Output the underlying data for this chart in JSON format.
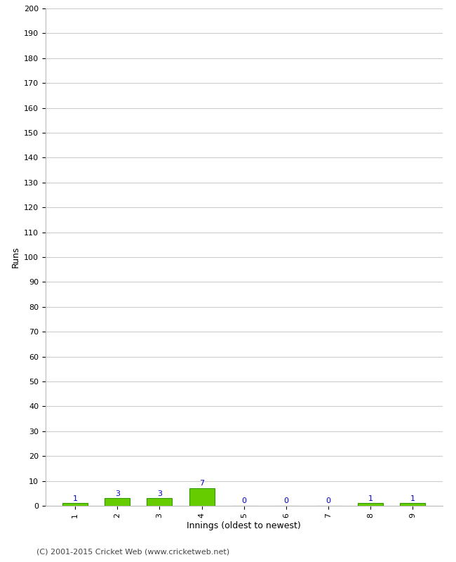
{
  "xlabel": "Innings (oldest to newest)",
  "ylabel": "Runs",
  "categories": [
    "1",
    "2",
    "3",
    "4",
    "5",
    "6",
    "7",
    "8",
    "9"
  ],
  "values": [
    1,
    3,
    3,
    7,
    0,
    0,
    0,
    1,
    1
  ],
  "bar_color": "#66cc00",
  "bar_edge_color": "#339900",
  "label_color": "#0000cc",
  "ylim": [
    0,
    200
  ],
  "yticks": [
    0,
    10,
    20,
    30,
    40,
    50,
    60,
    70,
    80,
    90,
    100,
    110,
    120,
    130,
    140,
    150,
    160,
    170,
    180,
    190,
    200
  ],
  "background_color": "#ffffff",
  "grid_color": "#cccccc",
  "footer": "(C) 2001-2015 Cricket Web (www.cricketweb.net)",
  "footer_color": "#444444",
  "label_fontsize": 8,
  "axis_label_fontsize": 9,
  "tick_fontsize": 8,
  "footer_fontsize": 8
}
